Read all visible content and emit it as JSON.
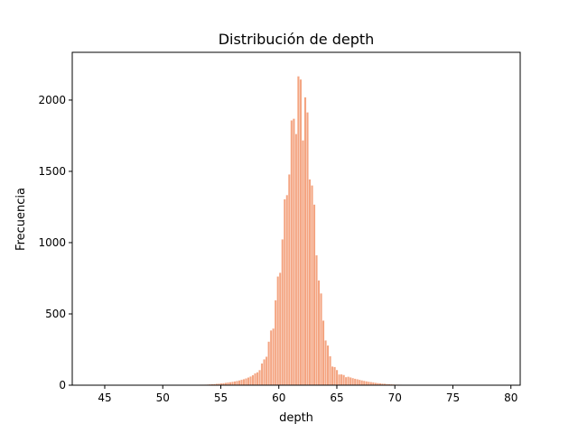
{
  "chart_data": {
    "type": "histogram",
    "title": "Distribución de depth",
    "xlabel": "depth",
    "ylabel": "Frecuencia",
    "xlim": [
      42.2,
      80.8
    ],
    "ylim": [
      0,
      2335
    ],
    "xticks": [
      45,
      50,
      55,
      60,
      65,
      70,
      75,
      80
    ],
    "yticks": [
      0,
      500,
      1000,
      1500,
      2000
    ],
    "x_range": [
      43.0,
      79.0
    ],
    "bins": 184,
    "bar_color": "#f4a582",
    "bar_edge_color": "#ffffff",
    "distribution": {
      "peak_center": 61.9,
      "peak_count": 2230,
      "sigma_left": 1.3,
      "sigma_right": 1.05,
      "tail_fraction": 0.06,
      "tail_sigma": 3.2
    }
  }
}
